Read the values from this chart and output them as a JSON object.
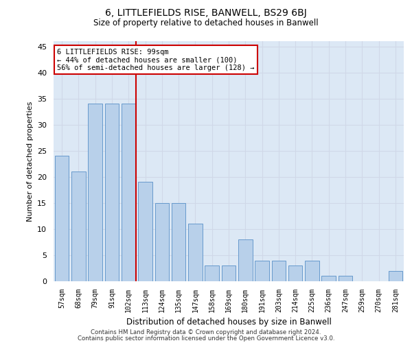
{
  "title1": "6, LITTLEFIELDS RISE, BANWELL, BS29 6BJ",
  "title2": "Size of property relative to detached houses in Banwell",
  "xlabel": "Distribution of detached houses by size in Banwell",
  "ylabel": "Number of detached properties",
  "categories": [
    "57sqm",
    "68sqm",
    "79sqm",
    "91sqm",
    "102sqm",
    "113sqm",
    "124sqm",
    "135sqm",
    "147sqm",
    "158sqm",
    "169sqm",
    "180sqm",
    "191sqm",
    "203sqm",
    "214sqm",
    "225sqm",
    "236sqm",
    "247sqm",
    "259sqm",
    "270sqm",
    "281sqm"
  ],
  "values": [
    24,
    21,
    34,
    34,
    34,
    19,
    15,
    15,
    11,
    3,
    3,
    8,
    4,
    4,
    3,
    4,
    1,
    1,
    0,
    0,
    2
  ],
  "bar_color": "#b8d0ea",
  "bar_edge_color": "#6699cc",
  "red_line_index": 4,
  "annotation_title": "6 LITTLEFIELDS RISE: 99sqm",
  "annotation_line1": "← 44% of detached houses are smaller (100)",
  "annotation_line2": "56% of semi-detached houses are larger (128) →",
  "annotation_box_color": "#ffffff",
  "annotation_box_edge": "#cc0000",
  "red_line_color": "#cc0000",
  "ylim": [
    0,
    46
  ],
  "yticks": [
    0,
    5,
    10,
    15,
    20,
    25,
    30,
    35,
    40,
    45
  ],
  "grid_color": "#d0d8e8",
  "bg_color": "#dce8f5",
  "footer1": "Contains HM Land Registry data © Crown copyright and database right 2024.",
  "footer2": "Contains public sector information licensed under the Open Government Licence v3.0."
}
